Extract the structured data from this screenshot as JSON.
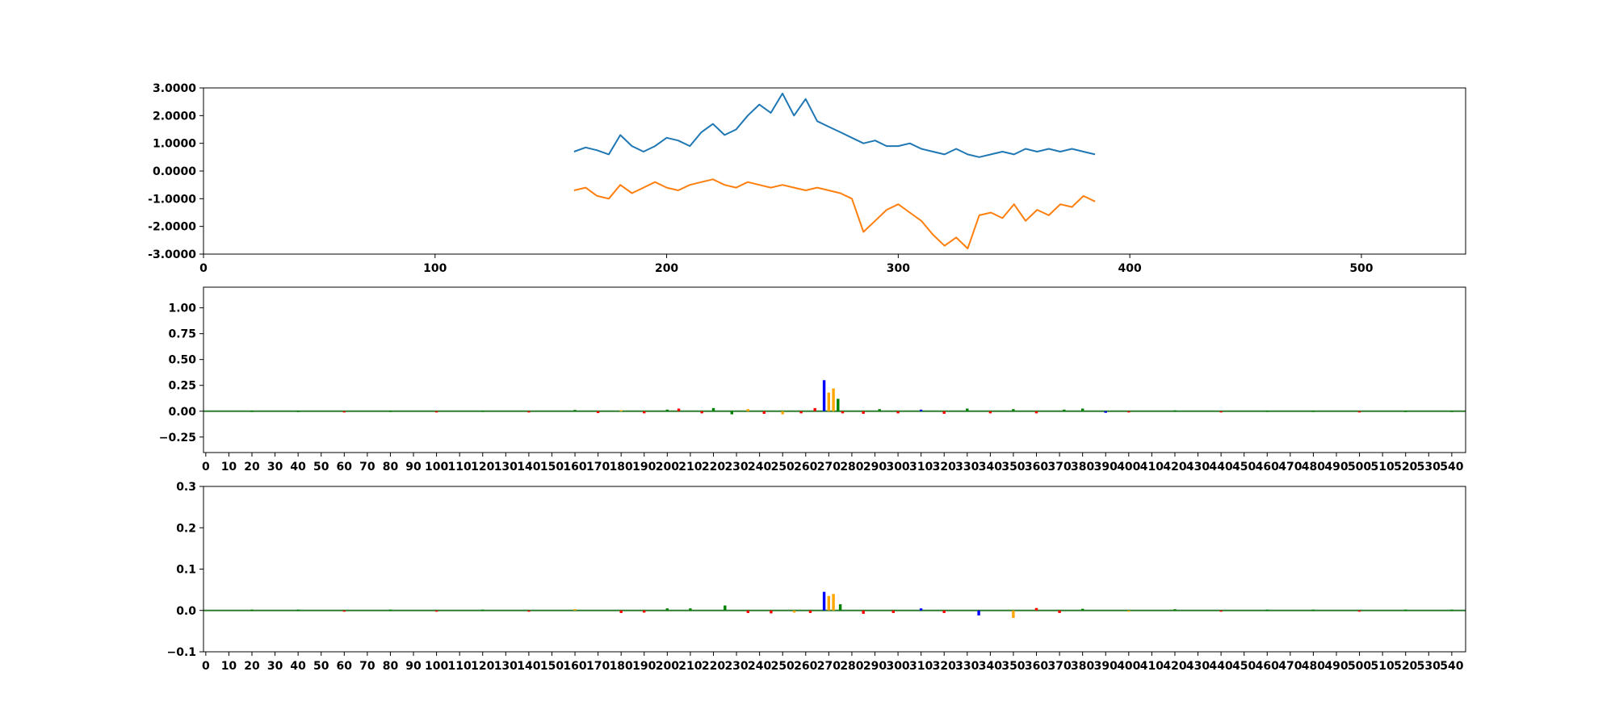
{
  "chart_data": [
    {
      "type": "line",
      "xlim": [
        0,
        545
      ],
      "ylim": [
        -3,
        3
      ],
      "x_ticks": [
        {
          "value": 0,
          "label": "0"
        },
        {
          "value": 100,
          "label": "100"
        },
        {
          "value": 200,
          "label": "200"
        },
        {
          "value": 300,
          "label": "300"
        },
        {
          "value": 400,
          "label": "400"
        },
        {
          "value": 500,
          "label": "500"
        }
      ],
      "y_ticks": [
        {
          "value": 3,
          "label": "3.0000"
        },
        {
          "value": 2,
          "label": "2.0000"
        },
        {
          "value": 1,
          "label": "1.0000"
        },
        {
          "value": 0,
          "label": "0.0000"
        },
        {
          "value": -1,
          "label": "-1.0000"
        },
        {
          "value": -2,
          "label": "-2.0000"
        },
        {
          "value": -3,
          "label": "-3.0000"
        }
      ],
      "series": [
        {
          "color": "#1f77b4",
          "x": [
            160,
            165,
            170,
            175,
            180,
            185,
            190,
            195,
            200,
            205,
            210,
            215,
            220,
            225,
            230,
            235,
            240,
            245,
            250,
            255,
            260,
            265,
            270,
            275,
            280,
            285,
            290,
            295,
            300,
            305,
            310,
            315,
            320,
            325,
            330,
            335,
            340,
            345,
            350,
            355,
            360,
            365,
            370,
            375,
            380,
            385
          ],
          "y": [
            0.7,
            0.85,
            0.75,
            0.6,
            1.3,
            0.9,
            0.7,
            0.9,
            1.2,
            1.1,
            0.9,
            1.4,
            1.7,
            1.3,
            1.5,
            2.0,
            2.4,
            2.1,
            2.8,
            2.0,
            2.6,
            1.8,
            1.6,
            1.4,
            1.2,
            1.0,
            1.1,
            0.9,
            0.9,
            1.0,
            0.8,
            0.7,
            0.6,
            0.8,
            0.6,
            0.5,
            0.6,
            0.7,
            0.6,
            0.8,
            0.7,
            0.8,
            0.7,
            0.8,
            0.7,
            0.6
          ]
        },
        {
          "color": "#ff7f0e",
          "x": [
            160,
            165,
            170,
            175,
            180,
            185,
            190,
            195,
            200,
            205,
            210,
            215,
            220,
            225,
            230,
            235,
            240,
            245,
            250,
            255,
            260,
            265,
            270,
            275,
            280,
            285,
            290,
            295,
            300,
            305,
            310,
            315,
            320,
            325,
            330,
            335,
            340,
            345,
            350,
            355,
            360,
            365,
            370,
            375,
            380,
            385
          ],
          "y": [
            -0.7,
            -0.6,
            -0.9,
            -1.0,
            -0.5,
            -0.8,
            -0.6,
            -0.4,
            -0.6,
            -0.7,
            -0.5,
            -0.4,
            -0.3,
            -0.5,
            -0.6,
            -0.4,
            -0.5,
            -0.6,
            -0.5,
            -0.6,
            -0.7,
            -0.6,
            -0.7,
            -0.8,
            -1.0,
            -2.2,
            -1.8,
            -1.4,
            -1.2,
            -1.5,
            -1.8,
            -2.3,
            -2.7,
            -2.4,
            -2.8,
            -1.6,
            -1.5,
            -1.7,
            -1.2,
            -1.8,
            -1.4,
            -1.6,
            -1.2,
            -1.3,
            -0.9,
            -1.1
          ]
        }
      ]
    },
    {
      "type": "bar",
      "xlim": [
        -1,
        546
      ],
      "ylim": [
        -0.4,
        1.2
      ],
      "x_tick_step": 10,
      "x_tick_max": 540,
      "y_ticks": [
        {
          "value": 1.0,
          "label": "1.00"
        },
        {
          "value": 0.75,
          "label": "0.75"
        },
        {
          "value": 0.5,
          "label": "0.50"
        },
        {
          "value": 0.25,
          "label": "0.25"
        },
        {
          "value": 0.0,
          "label": "0.00"
        },
        {
          "value": -0.25,
          "label": "−0.25"
        }
      ],
      "values": [
        {
          "x": 20,
          "value": 0.005,
          "color": "#008000"
        },
        {
          "x": 40,
          "value": 0.004,
          "color": "#008000"
        },
        {
          "x": 60,
          "value": -0.004,
          "color": "#ff0000"
        },
        {
          "x": 80,
          "value": 0.005,
          "color": "#008000"
        },
        {
          "x": 100,
          "value": -0.006,
          "color": "#ff0000"
        },
        {
          "x": 120,
          "value": 0.006,
          "color": "#008000"
        },
        {
          "x": 140,
          "value": -0.008,
          "color": "#ff0000"
        },
        {
          "x": 160,
          "value": 0.012,
          "color": "#008000"
        },
        {
          "x": 170,
          "value": -0.018,
          "color": "#ff0000"
        },
        {
          "x": 180,
          "value": 0.01,
          "color": "#ffa500"
        },
        {
          "x": 190,
          "value": -0.02,
          "color": "#ff0000"
        },
        {
          "x": 200,
          "value": 0.015,
          "color": "#008000"
        },
        {
          "x": 205,
          "value": 0.025,
          "color": "#ff0000"
        },
        {
          "x": 215,
          "value": -0.02,
          "color": "#ff0000"
        },
        {
          "x": 220,
          "value": 0.03,
          "color": "#008000"
        },
        {
          "x": 228,
          "value": -0.03,
          "color": "#008000"
        },
        {
          "x": 235,
          "value": 0.02,
          "color": "#ffa500"
        },
        {
          "x": 242,
          "value": -0.025,
          "color": "#ff0000"
        },
        {
          "x": 250,
          "value": -0.03,
          "color": "#ffa500"
        },
        {
          "x": 258,
          "value": -0.02,
          "color": "#ff0000"
        },
        {
          "x": 264,
          "value": 0.03,
          "color": "#ff0000"
        },
        {
          "x": 268,
          "value": 0.3,
          "color": "#0000ff"
        },
        {
          "x": 270,
          "value": 0.18,
          "color": "#ffa500"
        },
        {
          "x": 272,
          "value": 0.22,
          "color": "#ffa500"
        },
        {
          "x": 274,
          "value": 0.12,
          "color": "#008000"
        },
        {
          "x": 276,
          "value": -0.02,
          "color": "#ff0000"
        },
        {
          "x": 285,
          "value": -0.025,
          "color": "#ff0000"
        },
        {
          "x": 292,
          "value": 0.02,
          "color": "#008000"
        },
        {
          "x": 300,
          "value": -0.02,
          "color": "#ff0000"
        },
        {
          "x": 310,
          "value": 0.015,
          "color": "#0000ff"
        },
        {
          "x": 320,
          "value": -0.025,
          "color": "#ff0000"
        },
        {
          "x": 330,
          "value": 0.025,
          "color": "#008000"
        },
        {
          "x": 340,
          "value": -0.02,
          "color": "#ff0000"
        },
        {
          "x": 350,
          "value": 0.02,
          "color": "#008000"
        },
        {
          "x": 360,
          "value": -0.02,
          "color": "#ff0000"
        },
        {
          "x": 372,
          "value": 0.015,
          "color": "#008000"
        },
        {
          "x": 380,
          "value": 0.025,
          "color": "#008000"
        },
        {
          "x": 390,
          "value": -0.015,
          "color": "#0000ff"
        },
        {
          "x": 400,
          "value": -0.012,
          "color": "#ff0000"
        },
        {
          "x": 420,
          "value": 0.008,
          "color": "#008000"
        },
        {
          "x": 440,
          "value": -0.008,
          "color": "#ff0000"
        },
        {
          "x": 460,
          "value": 0.006,
          "color": "#008000"
        },
        {
          "x": 480,
          "value": 0.005,
          "color": "#008000"
        },
        {
          "x": 500,
          "value": -0.005,
          "color": "#ff0000"
        },
        {
          "x": 520,
          "value": 0.004,
          "color": "#008000"
        },
        {
          "x": 540,
          "value": 0.004,
          "color": "#008000"
        }
      ]
    },
    {
      "type": "bar",
      "xlim": [
        -1,
        546
      ],
      "ylim": [
        -0.1,
        0.3
      ],
      "x_tick_step": 10,
      "x_tick_max": 540,
      "y_ticks": [
        {
          "value": 0.3,
          "label": "0.3"
        },
        {
          "value": 0.2,
          "label": "0.2"
        },
        {
          "value": 0.1,
          "label": "0.1"
        },
        {
          "value": 0.0,
          "label": "0.0"
        },
        {
          "value": -0.1,
          "label": "−0.1"
        }
      ],
      "values": [
        {
          "x": 20,
          "value": 0.002,
          "color": "#008000"
        },
        {
          "x": 40,
          "value": 0.002,
          "color": "#008000"
        },
        {
          "x": 60,
          "value": -0.002,
          "color": "#ff0000"
        },
        {
          "x": 80,
          "value": 0.002,
          "color": "#008000"
        },
        {
          "x": 100,
          "value": -0.002,
          "color": "#ff0000"
        },
        {
          "x": 120,
          "value": 0.002,
          "color": "#008000"
        },
        {
          "x": 140,
          "value": -0.003,
          "color": "#ff0000"
        },
        {
          "x": 160,
          "value": 0.003,
          "color": "#ffa500"
        },
        {
          "x": 180,
          "value": -0.006,
          "color": "#ff0000"
        },
        {
          "x": 190,
          "value": -0.005,
          "color": "#ff0000"
        },
        {
          "x": 200,
          "value": 0.005,
          "color": "#008000"
        },
        {
          "x": 210,
          "value": 0.005,
          "color": "#008000"
        },
        {
          "x": 225,
          "value": 0.012,
          "color": "#008000"
        },
        {
          "x": 235,
          "value": -0.006,
          "color": "#ff0000"
        },
        {
          "x": 245,
          "value": -0.007,
          "color": "#ff0000"
        },
        {
          "x": 255,
          "value": -0.005,
          "color": "#ffa500"
        },
        {
          "x": 262,
          "value": -0.006,
          "color": "#ff0000"
        },
        {
          "x": 268,
          "value": 0.045,
          "color": "#0000ff"
        },
        {
          "x": 270,
          "value": 0.035,
          "color": "#ffa500"
        },
        {
          "x": 272,
          "value": 0.04,
          "color": "#ffa500"
        },
        {
          "x": 275,
          "value": 0.015,
          "color": "#008000"
        },
        {
          "x": 285,
          "value": -0.008,
          "color": "#ff0000"
        },
        {
          "x": 298,
          "value": -0.006,
          "color": "#ff0000"
        },
        {
          "x": 310,
          "value": 0.005,
          "color": "#0000ff"
        },
        {
          "x": 320,
          "value": -0.006,
          "color": "#ff0000"
        },
        {
          "x": 335,
          "value": -0.012,
          "color": "#0000ff"
        },
        {
          "x": 350,
          "value": -0.018,
          "color": "#ffa500"
        },
        {
          "x": 360,
          "value": 0.006,
          "color": "#ff0000"
        },
        {
          "x": 370,
          "value": -0.006,
          "color": "#ff0000"
        },
        {
          "x": 380,
          "value": 0.004,
          "color": "#008000"
        },
        {
          "x": 400,
          "value": -0.003,
          "color": "#ffa500"
        },
        {
          "x": 420,
          "value": 0.003,
          "color": "#008000"
        },
        {
          "x": 440,
          "value": -0.003,
          "color": "#ff0000"
        },
        {
          "x": 460,
          "value": 0.002,
          "color": "#008000"
        },
        {
          "x": 480,
          "value": 0.002,
          "color": "#008000"
        },
        {
          "x": 500,
          "value": -0.002,
          "color": "#ff0000"
        },
        {
          "x": 520,
          "value": 0.002,
          "color": "#008000"
        },
        {
          "x": 540,
          "value": 0.002,
          "color": "#008000"
        }
      ]
    }
  ]
}
